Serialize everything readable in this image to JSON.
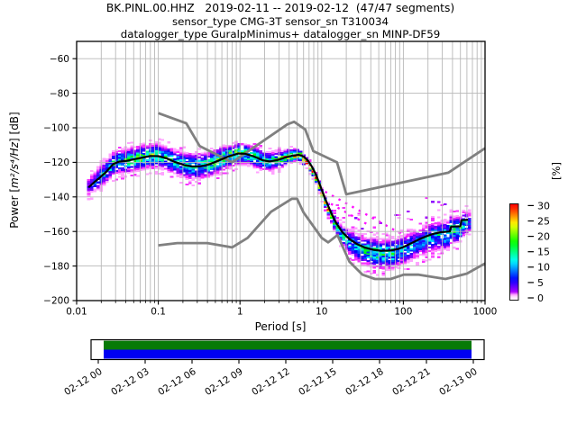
{
  "chart_data": {
    "type": "heatmap",
    "title": "BK.PINL.00.HHZ   2019-02-11 -- 2019-02-12  (47/47 segments)",
    "subtitle1": "sensor_type CMG-3T sensor_sn T310034",
    "subtitle2": "datalogger_type GuralpMinimus+ datalogger_sn MINP-DF59",
    "xlabel": "Period [s]",
    "ylabel_prefix": "Power [",
    "ylabel_math": "m²/s⁴/Hz",
    "ylabel_suffix": "] [dB]",
    "xscale": "log",
    "xlim": [
      0.01,
      1000
    ],
    "ylim": [
      -200,
      -50
    ],
    "grid": true,
    "xtick_values": [
      0.01,
      0.1,
      1,
      10,
      100,
      1000
    ],
    "xtick_labels": [
      "0.01",
      "0.1",
      "1",
      "10",
      "100",
      "1000"
    ],
    "ytick_values": [
      -60,
      -80,
      -100,
      -120,
      -140,
      -160,
      -180,
      -200
    ],
    "ytick_labels": [
      "−60",
      "−80",
      "−100",
      "−120",
      "−140",
      "−160",
      "−180",
      "−200"
    ],
    "colors": {
      "background": "#ffffff",
      "grid": "#b8b8b8",
      "noise_models": "#808080",
      "mode_line": "#000000",
      "outliers": "#ff00ff"
    },
    "colorbar": {
      "label": "[%]",
      "tick_values": [
        0,
        5,
        10,
        15,
        20,
        25,
        30
      ],
      "tick_labels": [
        "0",
        "5",
        "10",
        "15",
        "20",
        "25",
        "30"
      ],
      "colormap": "pqlx"
    },
    "mode_line": [
      [
        0.014,
        -134.5
      ],
      [
        0.016,
        -132
      ],
      [
        0.019,
        -129
      ],
      [
        0.023,
        -125.5
      ],
      [
        0.028,
        -121
      ],
      [
        0.033,
        -119.6
      ],
      [
        0.04,
        -119.2
      ],
      [
        0.05,
        -118.3
      ],
      [
        0.065,
        -117.2
      ],
      [
        0.08,
        -116.3
      ],
      [
        0.1,
        -116.4
      ],
      [
        0.125,
        -117.6
      ],
      [
        0.16,
        -119.8
      ],
      [
        0.21,
        -121.6
      ],
      [
        0.26,
        -122.4
      ],
      [
        0.33,
        -122.3
      ],
      [
        0.42,
        -121.2
      ],
      [
        0.55,
        -118.9
      ],
      [
        0.72,
        -116.6
      ],
      [
        0.95,
        -114.9
      ],
      [
        1.15,
        -115.0
      ],
      [
        1.45,
        -116.4
      ],
      [
        1.9,
        -118.8
      ],
      [
        2.3,
        -119.5
      ],
      [
        2.9,
        -118.6
      ],
      [
        3.6,
        -117.2
      ],
      [
        4.4,
        -116.1
      ],
      [
        5.2,
        -115.7
      ],
      [
        6.0,
        -116.6
      ],
      [
        6.8,
        -119.0
      ],
      [
        7.6,
        -122.5
      ],
      [
        8.5,
        -127
      ],
      [
        9.5,
        -133
      ],
      [
        11,
        -141
      ],
      [
        13,
        -149
      ],
      [
        15,
        -155
      ],
      [
        18,
        -160.5
      ],
      [
        22,
        -164.5
      ],
      [
        27,
        -167.3
      ],
      [
        34,
        -169.3
      ],
      [
        43,
        -170.6
      ],
      [
        55,
        -171.2
      ],
      [
        70,
        -171.0
      ],
      [
        85,
        -170.2
      ],
      [
        100,
        -169.0
      ],
      [
        125,
        -166.8
      ],
      [
        155,
        -164.6
      ],
      [
        190,
        -162.8
      ],
      [
        230,
        -161.4
      ],
      [
        290,
        -160.4
      ],
      [
        370,
        -160.0
      ],
      [
        385,
        -157.2
      ],
      [
        500,
        -157.0
      ],
      [
        515,
        -153.5
      ],
      [
        620,
        -153.2
      ],
      [
        676,
        -153.2
      ]
    ],
    "band": [
      [
        0.0135,
        5,
        8
      ],
      [
        0.02,
        6,
        11
      ],
      [
        0.04,
        6.5,
        14
      ],
      [
        0.08,
        6.5,
        17
      ],
      [
        0.12,
        6.5,
        14
      ],
      [
        0.2,
        7,
        12
      ],
      [
        0.33,
        7,
        13
      ],
      [
        0.5,
        6.5,
        15
      ],
      [
        0.75,
        6,
        17
      ],
      [
        1.0,
        5.5,
        19
      ],
      [
        1.5,
        5.5,
        14
      ],
      [
        2.2,
        5,
        14
      ],
      [
        3.2,
        4.5,
        18
      ],
      [
        4.5,
        3.5,
        24
      ],
      [
        5.5,
        3,
        28
      ],
      [
        6.5,
        2.8,
        30
      ],
      [
        8,
        2.6,
        30
      ],
      [
        10,
        2.8,
        29
      ],
      [
        12,
        3.2,
        26
      ],
      [
        14,
        4,
        18
      ],
      [
        17,
        5,
        13
      ],
      [
        21,
        6.5,
        10
      ],
      [
        27,
        7.5,
        11
      ],
      [
        35,
        8,
        13
      ],
      [
        50,
        8,
        14
      ],
      [
        70,
        8,
        13
      ],
      [
        90,
        8,
        11
      ],
      [
        120,
        8,
        9
      ],
      [
        170,
        8,
        9
      ],
      [
        230,
        8,
        10
      ],
      [
        300,
        8,
        12
      ],
      [
        400,
        7.5,
        14
      ],
      [
        520,
        7,
        15
      ],
      [
        620,
        6.5,
        14
      ],
      [
        676,
        6,
        12
      ]
    ],
    "nhnm": [
      [
        0.1,
        -91.5
      ],
      [
        0.22,
        -97.4
      ],
      [
        0.32,
        -110.5
      ],
      [
        0.8,
        -120.0
      ],
      [
        3.8,
        -98.0
      ],
      [
        4.6,
        -96.5
      ],
      [
        6.3,
        -101.0
      ],
      [
        7.9,
        -113.5
      ],
      [
        15.4,
        -120.0
      ],
      [
        20,
        -138.5
      ],
      [
        354.8,
        -126.0
      ],
      [
        1000,
        -111.8
      ]
    ],
    "nlnm": [
      [
        0.1,
        -168.0
      ],
      [
        0.17,
        -166.7
      ],
      [
        0.4,
        -166.7
      ],
      [
        0.8,
        -169.2
      ],
      [
        1.24,
        -163.7
      ],
      [
        2.4,
        -148.6
      ],
      [
        4.3,
        -141.1
      ],
      [
        5.0,
        -141.1
      ],
      [
        6.0,
        -149.0
      ],
      [
        10,
        -163.7
      ],
      [
        12,
        -166.3
      ],
      [
        15.6,
        -162.1
      ],
      [
        21.9,
        -177.5
      ],
      [
        31.6,
        -185.0
      ],
      [
        45,
        -187.5
      ],
      [
        70,
        -187.5
      ],
      [
        101,
        -185.0
      ],
      [
        154,
        -185.0
      ],
      [
        328,
        -187.5
      ],
      [
        600,
        -184.4
      ],
      [
        1000,
        -178.5
      ]
    ],
    "outlier_streaks": [
      [
        [
          11,
          -137
        ],
        [
          130,
          -165
        ]
      ],
      [
        [
          13,
          -144
        ],
        [
          40,
          -157
        ]
      ]
    ],
    "timeline": {
      "tick_labels": [
        "02-12 00",
        "02-12 03",
        "02-12 06",
        "02-12 09",
        "02-12 12",
        "02-12 15",
        "02-12 18",
        "02-12 21",
        "02-13 00"
      ],
      "fill_top_color": "#077a07",
      "fill_bottom_color": "#0000f2"
    }
  }
}
